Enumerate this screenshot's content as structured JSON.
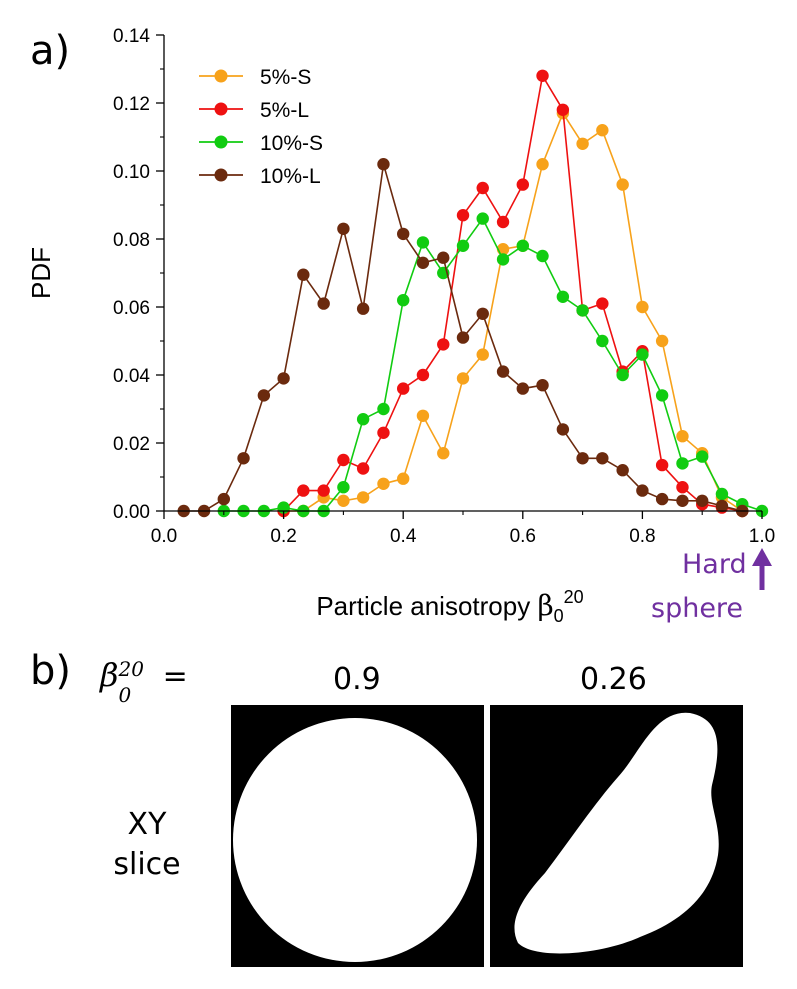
{
  "panel_labels": {
    "a": "a)",
    "b": "b)"
  },
  "chart_data": {
    "type": "line",
    "title": "",
    "xlabel": "Particle anisotropy",
    "xlabel_symbol": "β",
    "xlabel_sub": "0",
    "xlabel_sup": "20",
    "ylabel": "PDF",
    "xlim": [
      0.0,
      1.0
    ],
    "ylim": [
      0.0,
      0.14
    ],
    "xticks": [
      0.0,
      0.2,
      0.4,
      0.6,
      0.8,
      1.0
    ],
    "xtick_labels": [
      "0.0",
      "0.2",
      "0.4",
      "0.6",
      "0.8",
      "1.0"
    ],
    "yticks": [
      0.0,
      0.02,
      0.04,
      0.06,
      0.08,
      0.1,
      0.12,
      0.14
    ],
    "ytick_labels": [
      "0.00",
      "0.02",
      "0.04",
      "0.06",
      "0.08",
      "0.10",
      "0.12",
      "0.14"
    ],
    "legend_position": "top-left",
    "annotation": {
      "line1": "Hard",
      "line2": "sphere",
      "color": "#7030a0"
    },
    "series": [
      {
        "name": "5%-S",
        "color": "#f7a21b",
        "x": [
          0.2,
          0.233,
          0.267,
          0.3,
          0.333,
          0.367,
          0.4,
          0.433,
          0.467,
          0.5,
          0.533,
          0.567,
          0.6,
          0.633,
          0.667,
          0.7,
          0.733,
          0.767,
          0.8,
          0.833,
          0.867,
          0.9,
          0.933,
          0.967
        ],
        "y": [
          0.0,
          0.0,
          0.004,
          0.003,
          0.004,
          0.008,
          0.0095,
          0.028,
          0.017,
          0.039,
          0.046,
          0.077,
          0.078,
          0.102,
          0.117,
          0.108,
          0.112,
          0.096,
          0.06,
          0.05,
          0.022,
          0.017,
          0.004,
          0.0
        ]
      },
      {
        "name": "5%-L",
        "color": "#ee1111",
        "x": [
          0.2,
          0.233,
          0.267,
          0.3,
          0.333,
          0.367,
          0.4,
          0.433,
          0.467,
          0.5,
          0.533,
          0.567,
          0.6,
          0.633,
          0.667,
          0.7,
          0.733,
          0.767,
          0.8,
          0.833,
          0.867,
          0.9,
          0.933,
          0.967
        ],
        "y": [
          0.0,
          0.006,
          0.006,
          0.015,
          0.0125,
          0.023,
          0.036,
          0.04,
          0.049,
          0.087,
          0.095,
          0.085,
          0.096,
          0.128,
          0.118,
          0.059,
          0.061,
          0.041,
          0.047,
          0.0135,
          0.007,
          0.002,
          0.001,
          0.0
        ]
      },
      {
        "name": "10%-S",
        "color": "#11cc11",
        "x": [
          0.1,
          0.133,
          0.167,
          0.2,
          0.233,
          0.267,
          0.3,
          0.333,
          0.367,
          0.4,
          0.433,
          0.467,
          0.5,
          0.533,
          0.567,
          0.6,
          0.633,
          0.667,
          0.7,
          0.733,
          0.767,
          0.8,
          0.833,
          0.867,
          0.9,
          0.933,
          0.967,
          1.0
        ],
        "y": [
          0.0,
          0.0,
          0.0,
          0.001,
          0.0,
          0.0,
          0.007,
          0.027,
          0.03,
          0.062,
          0.079,
          0.07,
          0.078,
          0.086,
          0.074,
          0.078,
          0.075,
          0.063,
          0.059,
          0.05,
          0.04,
          0.046,
          0.034,
          0.014,
          0.016,
          0.005,
          0.002,
          0.0
        ]
      },
      {
        "name": "10%-L",
        "color": "#6b2a0e",
        "x": [
          0.033,
          0.067,
          0.1,
          0.133,
          0.167,
          0.2,
          0.233,
          0.267,
          0.3,
          0.333,
          0.367,
          0.4,
          0.433,
          0.467,
          0.5,
          0.533,
          0.567,
          0.6,
          0.633,
          0.667,
          0.7,
          0.733,
          0.767,
          0.8,
          0.833,
          0.867,
          0.9,
          0.933,
          0.967
        ],
        "y": [
          0.0,
          0.0,
          0.0035,
          0.0155,
          0.034,
          0.039,
          0.0695,
          0.061,
          0.083,
          0.0595,
          0.102,
          0.0815,
          0.073,
          0.0745,
          0.051,
          0.058,
          0.041,
          0.036,
          0.037,
          0.024,
          0.0155,
          0.0155,
          0.012,
          0.006,
          0.0035,
          0.003,
          0.003,
          0.0015,
          0.0
        ]
      }
    ]
  },
  "panel_b": {
    "beta_symbol": "β",
    "beta_sub": "0",
    "beta_sup": "20",
    "equals": "=",
    "values": [
      "0.9",
      "0.26"
    ],
    "row_label_line1": "XY",
    "row_label_line2": "slice"
  }
}
